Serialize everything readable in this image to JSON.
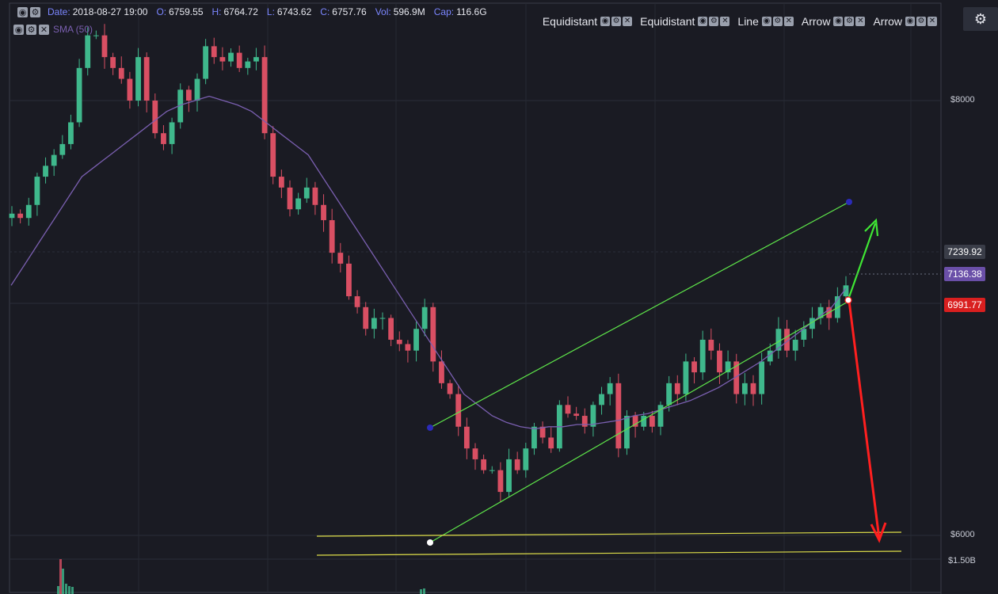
{
  "legend": {
    "date_label": "Date:",
    "date": "2018-08-27 19:00",
    "open_label": "O:",
    "open": "6759.55",
    "high_label": "H:",
    "high": "6764.72",
    "low_label": "L:",
    "low": "6743.62",
    "close_label": "C:",
    "close": "6757.76",
    "vol_label": "Vol:",
    "vol": "596.9M",
    "cap_label": "Cap:",
    "cap": "116.6G",
    "sma_label": "SMA (50)"
  },
  "tools": [
    "Equidistant",
    "Equidistant",
    "Line",
    "Arrow",
    "Arrow"
  ],
  "icons": {
    "eye": "eye-icon",
    "gear": "gear-icon",
    "close": "close-icon"
  },
  "price_tags": {
    "last": "7239.92",
    "sma": "7136.38",
    "current": "6991.77"
  },
  "axis": {
    "tick_8000": "$8000",
    "tick_6000": "$6000",
    "vol_tick": "$1.50B"
  },
  "colors": {
    "background": "#1a1b23",
    "up": "#3fb88c",
    "down": "#d94f63",
    "sma": "#7a5fb0",
    "channel": "#5ee64a",
    "support": "#e0e04a",
    "arrow_up": "#3fe634",
    "arrow_down": "#ff1f1f",
    "tag_last": "#3a3d48",
    "tag_sma": "#6a4fa8",
    "tag_current": "#d91f1f"
  },
  "chart_data": {
    "type": "candlestick",
    "y_axis": {
      "min": 5800,
      "max": 8400,
      "ticks": [
        6000,
        8000
      ]
    },
    "close_series": [
      7480,
      7460,
      7520,
      7650,
      7700,
      7750,
      7800,
      7900,
      8150,
      8300,
      8300,
      8200,
      8150,
      8100,
      8000,
      8200,
      8000,
      7850,
      7800,
      7900,
      8050,
      8000,
      8100,
      8250,
      8200,
      8180,
      8220,
      8150,
      8180,
      8200,
      7850,
      7650,
      7600,
      7500,
      7550,
      7600,
      7520,
      7450,
      7300,
      7250,
      7100,
      7050,
      6950,
      7000,
      7000,
      6900,
      6880,
      6850,
      6950,
      7050,
      6800,
      6700,
      6650,
      6500,
      6400,
      6350,
      6300,
      6300,
      6200,
      6350,
      6300,
      6400,
      6500,
      6450,
      6400,
      6600,
      6560,
      6550,
      6500,
      6600,
      6650,
      6700,
      6400,
      6550,
      6500,
      6550,
      6500,
      6600,
      6700,
      6650,
      6800,
      6750,
      6900,
      6850,
      6750,
      6800,
      6650,
      6700,
      6650,
      6800,
      6850,
      6950,
      6850,
      6900,
      6950,
      7000,
      7050,
      7000,
      7100,
      7150
    ],
    "sma_50": [
      7150,
      7250,
      7350,
      7450,
      7550,
      7650,
      7700,
      7750,
      7800,
      7850,
      7900,
      7950,
      7980,
      8000,
      8020,
      8000,
      7980,
      7950,
      7900,
      7850,
      7800,
      7750,
      7650,
      7550,
      7450,
      7350,
      7250,
      7150,
      7050,
      6950,
      6850,
      6750,
      6650,
      6600,
      6550,
      6520,
      6500,
      6490,
      6500,
      6500,
      6510,
      6510,
      6520,
      6530,
      6550,
      6560,
      6580,
      6600,
      6620,
      6650,
      6680,
      6720,
      6760,
      6800,
      6850,
      6900,
      6950,
      7000,
      7050,
      7136
    ],
    "last_price": 7239.92,
    "sma_value": 7136.38,
    "current_price": 6991.77
  }
}
